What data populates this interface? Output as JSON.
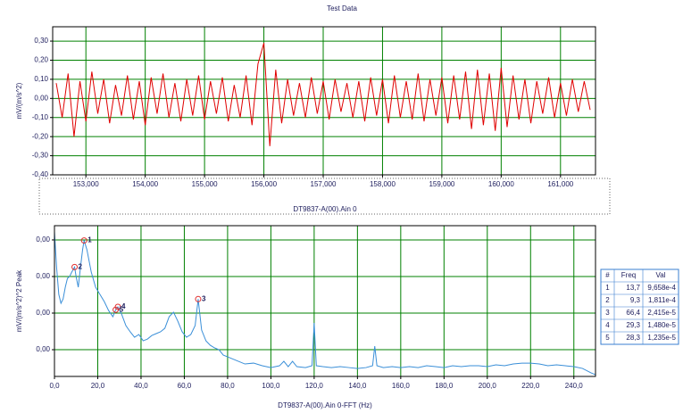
{
  "chart_data": [
    {
      "type": "line",
      "title": "Test Data",
      "y_label": "mV/(m/s^2)",
      "x": [
        152.5,
        152.6,
        152.7,
        152.8,
        152.9,
        153.0,
        153.1,
        153.2,
        153.3,
        153.4,
        153.5,
        153.6,
        153.7,
        153.8,
        153.9,
        154.0,
        154.1,
        154.2,
        154.3,
        154.4,
        154.5,
        154.6,
        154.7,
        154.8,
        154.9,
        155.0,
        155.1,
        155.2,
        155.3,
        155.4,
        155.5,
        155.6,
        155.7,
        155.8,
        155.9,
        156.0,
        156.1,
        156.2,
        156.3,
        156.4,
        156.5,
        156.6,
        156.7,
        156.8,
        156.9,
        157.0,
        157.1,
        157.2,
        157.3,
        157.4,
        157.5,
        157.6,
        157.7,
        157.8,
        157.9,
        158.0,
        158.1,
        158.2,
        158.3,
        158.4,
        158.5,
        158.6,
        158.7,
        158.8,
        158.9,
        159.0,
        159.1,
        159.2,
        159.3,
        159.4,
        159.5,
        159.6,
        159.7,
        159.8,
        159.9,
        160.0,
        160.1,
        160.2,
        160.3,
        160.4,
        160.5,
        160.6,
        160.7,
        160.8,
        160.9,
        161.0,
        161.1,
        161.2,
        161.3,
        161.4,
        161.5
      ],
      "series": [
        {
          "name": "DT9837-A(00).Ain 0",
          "color": "#e00000",
          "values": [
            0.08,
            -0.1,
            0.13,
            -0.2,
            0.09,
            -0.12,
            0.14,
            -0.08,
            0.1,
            -0.13,
            0.07,
            -0.09,
            0.12,
            -0.11,
            0.09,
            -0.14,
            0.11,
            -0.08,
            0.13,
            -0.1,
            0.08,
            -0.12,
            0.1,
            -0.09,
            0.12,
            -0.11,
            0.09,
            -0.08,
            0.11,
            -0.12,
            0.07,
            -0.1,
            0.12,
            -0.14,
            0.18,
            0.29,
            -0.25,
            0.15,
            -0.13,
            0.1,
            -0.09,
            0.08,
            -0.1,
            0.11,
            -0.08,
            0.09,
            -0.11,
            0.1,
            -0.07,
            0.08,
            -0.1,
            0.09,
            -0.12,
            0.11,
            -0.09,
            0.1,
            -0.13,
            0.12,
            -0.1,
            0.09,
            -0.11,
            0.13,
            -0.12,
            0.1,
            -0.09,
            0.11,
            -0.13,
            0.12,
            -0.11,
            0.14,
            -0.16,
            0.15,
            -0.14,
            0.13,
            -0.17,
            0.16,
            -0.15,
            0.12,
            -0.11,
            0.1,
            -0.13,
            0.09,
            -0.08,
            0.11,
            -0.1,
            0.08,
            -0.09,
            0.1,
            -0.07,
            0.09,
            -0.06
          ]
        }
      ],
      "xlim": [
        152.44,
        161.59
      ],
      "ylim": [
        -0.4,
        0.375
      ],
      "xticks": [
        {
          "value": 153,
          "label": "153,000"
        },
        {
          "value": 154,
          "label": "154,000"
        },
        {
          "value": 155,
          "label": "155,000"
        },
        {
          "value": 156,
          "label": "156,000"
        },
        {
          "value": 157,
          "label": "157,000"
        },
        {
          "value": 158,
          "label": "158,000"
        },
        {
          "value": 159,
          "label": "159,000"
        },
        {
          "value": 160,
          "label": "160,000"
        },
        {
          "value": 161,
          "label": "161,000"
        }
      ],
      "yticks": [
        {
          "value": 0.3,
          "label": "0,30"
        },
        {
          "value": 0.2,
          "label": "0,20"
        },
        {
          "value": 0.1,
          "label": "0,10"
        },
        {
          "value": 0,
          "label": "0,00"
        },
        {
          "value": -0.1,
          "label": "-0,10"
        },
        {
          "value": -0.2,
          "label": "-0,20"
        },
        {
          "value": -0.3,
          "label": "-0,30"
        },
        {
          "value": -0.4,
          "label": "-0,40"
        }
      ],
      "grid": true,
      "grid_color": "#008000"
    },
    {
      "type": "line",
      "y_label": "mV/(m/s^2)^2 Peak",
      "x_label": "DT9837-A(00).Ain 0-FFT (Hz)",
      "yscale": "log",
      "x": [
        0,
        1,
        2,
        3,
        4,
        5,
        6,
        7,
        8,
        9.3,
        10,
        11,
        12,
        13,
        13.7,
        15,
        17,
        19,
        21,
        23,
        25,
        27,
        28.3,
        29.3,
        31,
        33,
        35,
        37,
        39,
        41,
        43,
        45,
        47,
        49,
        51,
        53,
        55,
        57,
        59,
        61,
        63,
        65,
        66.4,
        68,
        70,
        72,
        74,
        76,
        78,
        80,
        84,
        88,
        92,
        96,
        100,
        104,
        106,
        108,
        110,
        112,
        116,
        119,
        120,
        121,
        124,
        128,
        132,
        136,
        140,
        144,
        147,
        148,
        149,
        152,
        156,
        160,
        164,
        168,
        172,
        176,
        180,
        184,
        188,
        192,
        196,
        200,
        204,
        208,
        212,
        216,
        220,
        224,
        228,
        232,
        236,
        240,
        244,
        248,
        250
      ],
      "series": [
        {
          "color": "#3a8fd8",
          "values": [
            0.00166,
            0.000175,
            3.25e-05,
            1.85e-05,
            2.45e-05,
            5.1e-05,
            8.9e-05,
            0.0001,
            0.000132,
            0.0001811,
            0.0001,
            5.1e-05,
            0.000175,
            0.00054,
            0.0009658,
            0.00054,
            0.000132,
            5.1e-05,
            3.25e-05,
            2.07e-05,
            1.18e-05,
            7.98e-06,
            1.235e-05,
            1.48e-05,
            9.46e-06,
            4.56e-06,
            3.08e-06,
            2.19e-06,
            2.6e-06,
            1.75e-06,
            1.96e-06,
            2.45e-06,
            2.75e-06,
            3.08e-06,
            3.85e-06,
            7.98e-06,
            1.06e-05,
            6.03e-06,
            3.08e-06,
            2.19e-06,
            2.6e-06,
            4.56e-06,
            2.415e-05,
            3.44e-06,
            1.75e-06,
            1.32e-06,
            1.12e-06,
            1e-06,
            7.14e-07,
            6.38e-07,
            5.1e-07,
            4.07e-07,
            4.3e-07,
            3.64e-07,
            3.25e-07,
            3.64e-07,
            4.82e-07,
            3.44e-07,
            4.82e-07,
            3.44e-07,
            3.25e-07,
            3.64e-07,
            5.4e-06,
            3.64e-07,
            3.44e-07,
            3.25e-07,
            3.44e-07,
            3.25e-07,
            3.07e-07,
            3.25e-07,
            3.64e-07,
            1.25e-06,
            3.64e-07,
            3.25e-07,
            3.44e-07,
            3.25e-07,
            3.44e-07,
            3.25e-07,
            3.64e-07,
            3.44e-07,
            3.25e-07,
            3.64e-07,
            3.44e-07,
            3.64e-07,
            3.64e-07,
            3.44e-07,
            3.85e-07,
            3.64e-07,
            4.07e-07,
            4.3e-07,
            4.3e-07,
            4.07e-07,
            3.64e-07,
            3.85e-07,
            3.64e-07,
            3.44e-07,
            3.07e-07,
            2.32e-07,
            2.07e-07
          ]
        }
      ],
      "xlim": [
        0,
        250
      ],
      "ylim": [
        1.86e-07,
        0.00245
      ],
      "xticks": [
        {
          "value": 0,
          "label": "0,0"
        },
        {
          "value": 20,
          "label": "20,0"
        },
        {
          "value": 40,
          "label": "40,0"
        },
        {
          "value": 60,
          "label": "60,0"
        },
        {
          "value": 80,
          "label": "80,0"
        },
        {
          "value": 100,
          "label": "100,0"
        },
        {
          "value": 120,
          "label": "120,0"
        },
        {
          "value": 140,
          "label": "140,0"
        },
        {
          "value": 160,
          "label": "160,0"
        },
        {
          "value": 180,
          "label": "180,0"
        },
        {
          "value": 200,
          "label": "200,0"
        },
        {
          "value": 220,
          "label": "220,0"
        },
        {
          "value": 240,
          "label": "240,0"
        }
      ],
      "yticks": [
        {
          "value": 0.001,
          "label": "0,00"
        },
        {
          "value": 0.0001,
          "label": "0,00"
        },
        {
          "value": 1e-05,
          "label": "0,00"
        },
        {
          "value": 1e-06,
          "label": "0,00"
        }
      ],
      "grid": true,
      "grid_color": "#008000",
      "peaks": {
        "columns": [
          "#",
          "Freq",
          "Val"
        ],
        "color": "#e03030",
        "labels": [
          "1",
          "2",
          "3",
          "4",
          "5"
        ],
        "freq": [
          13.7,
          9.3,
          66.4,
          29.3,
          28.3
        ],
        "freq_labels": [
          "13,7",
          "9,3",
          "66,4",
          "29,3",
          "28,3"
        ],
        "val": [
          0.0009658,
          0.0001811,
          2.415e-05,
          1.48e-05,
          1.235e-05
        ],
        "val_labels": [
          "9,658e-4",
          "1,811e-4",
          "2,415e-5",
          "1,480e-5",
          "1,235e-5"
        ]
      }
    }
  ]
}
